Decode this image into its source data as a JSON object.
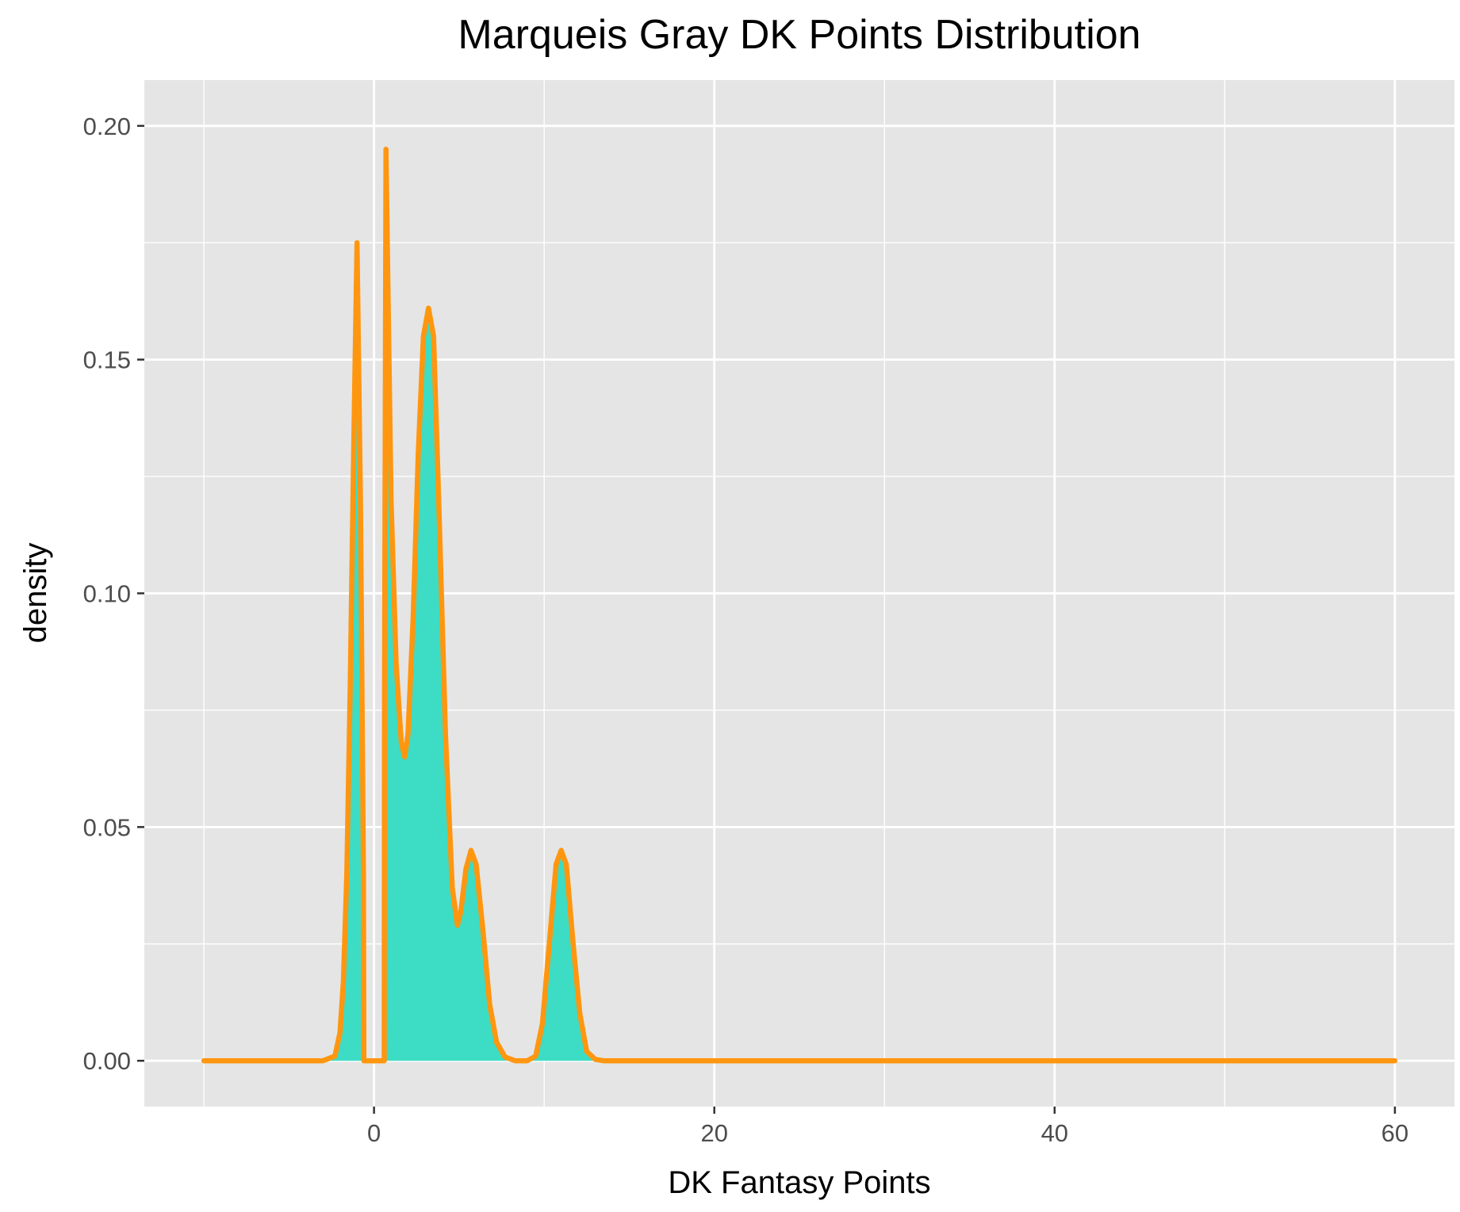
{
  "chart_data": {
    "type": "area",
    "title": "Marqueis Gray DK Points Distribution",
    "xlabel": "DK Fantasy Points",
    "ylabel": "density",
    "xlim": [
      -13.5,
      63.5
    ],
    "ylim": [
      -0.0098,
      0.2098
    ],
    "x_ticks": [
      0,
      20,
      40,
      60
    ],
    "x_tick_labels": [
      "0",
      "20",
      "40",
      "60"
    ],
    "y_ticks": [
      0,
      0.05,
      0.1,
      0.15,
      0.2
    ],
    "y_tick_labels": [
      "0.00",
      "0.05",
      "0.10",
      "0.15",
      "0.20"
    ],
    "x_minor_breaks": [
      -10,
      10,
      30,
      50
    ],
    "y_minor_breaks": [
      0.025,
      0.075,
      0.125,
      0.175
    ],
    "grid": true,
    "legend": "none",
    "colors": {
      "panel": "#E5E5E5",
      "grid": "#FFFFFF",
      "fill": "#3DDCC4",
      "line": "#FF9610",
      "tick_text": "#4D4D4D"
    },
    "series": [
      {
        "points": [
          [
            -10,
            0
          ],
          [
            -3,
            0
          ],
          [
            -2.3,
            0.001
          ],
          [
            -2,
            0.006
          ],
          [
            -1.8,
            0.017
          ],
          [
            -1.6,
            0.04
          ],
          [
            -1.4,
            0.08
          ],
          [
            -1.2,
            0.13
          ],
          [
            -1.0,
            0.175
          ],
          [
            -0.8,
            0.12
          ],
          [
            -0.62,
            0.04
          ],
          [
            -0.6,
            0
          ],
          [
            0.6,
            0
          ],
          [
            0.62,
            0.08
          ],
          [
            0.7,
            0.195
          ],
          [
            0.8,
            0.17
          ],
          [
            1.0,
            0.12
          ],
          [
            1.3,
            0.085
          ],
          [
            1.6,
            0.068
          ],
          [
            1.8,
            0.065
          ],
          [
            2.0,
            0.07
          ],
          [
            2.3,
            0.095
          ],
          [
            2.6,
            0.13
          ],
          [
            2.9,
            0.155
          ],
          [
            3.2,
            0.161
          ],
          [
            3.5,
            0.155
          ],
          [
            3.8,
            0.12
          ],
          [
            4.2,
            0.07
          ],
          [
            4.6,
            0.037
          ],
          [
            4.9,
            0.029
          ],
          [
            5.1,
            0.032
          ],
          [
            5.4,
            0.041
          ],
          [
            5.7,
            0.045
          ],
          [
            6.0,
            0.042
          ],
          [
            6.4,
            0.028
          ],
          [
            6.8,
            0.012
          ],
          [
            7.2,
            0.004
          ],
          [
            7.7,
            0.0008
          ],
          [
            8.3,
            0
          ],
          [
            9.0,
            0
          ],
          [
            9.5,
            0.001
          ],
          [
            9.9,
            0.008
          ],
          [
            10.3,
            0.025
          ],
          [
            10.7,
            0.042
          ],
          [
            11.0,
            0.045
          ],
          [
            11.3,
            0.042
          ],
          [
            11.7,
            0.025
          ],
          [
            12.1,
            0.01
          ],
          [
            12.5,
            0.002
          ],
          [
            13.0,
            0.0003
          ],
          [
            13.5,
            0
          ],
          [
            60,
            0
          ]
        ]
      }
    ]
  }
}
